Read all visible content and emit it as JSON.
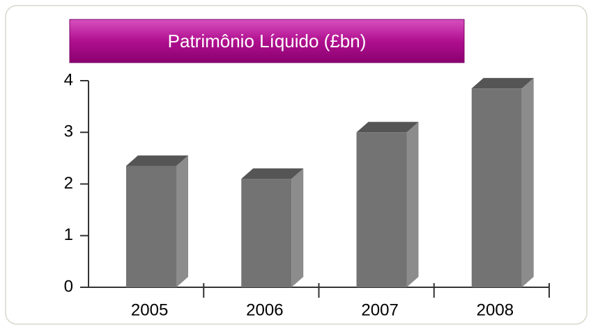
{
  "chart_data": {
    "type": "bar3d",
    "title": "Patrimônio Líquido (£bn)",
    "categories": [
      "2005",
      "2006",
      "2007",
      "2008"
    ],
    "values": [
      2.35,
      2.1,
      3.0,
      3.85
    ],
    "color": "#737373",
    "ylim": [
      0,
      4
    ],
    "yticks": [
      0,
      1,
      2,
      3,
      4
    ],
    "grid": false
  }
}
